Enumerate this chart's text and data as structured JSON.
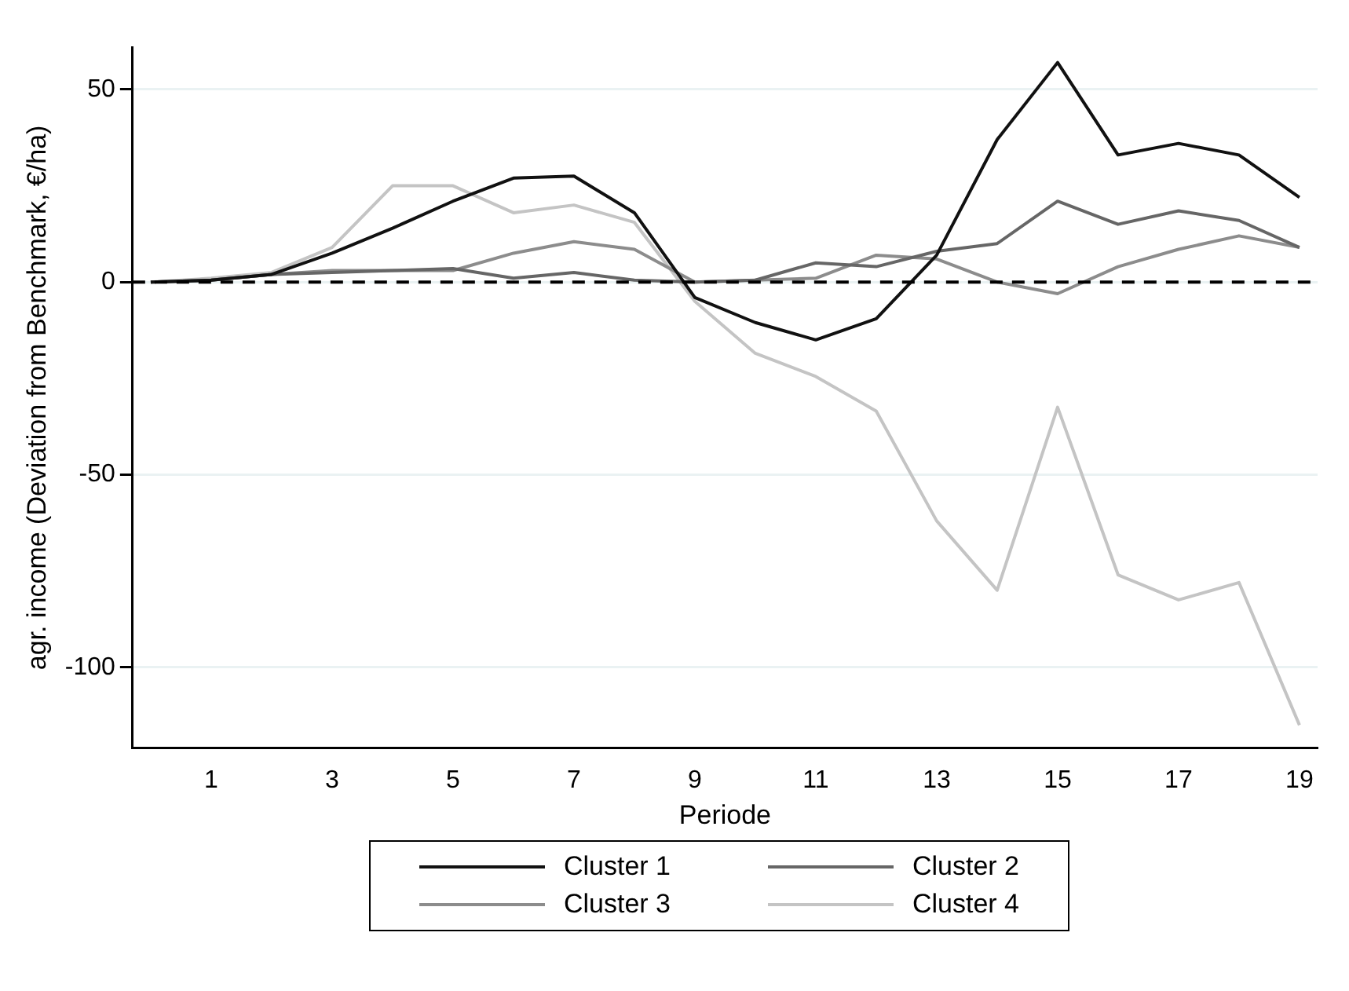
{
  "chart_data": {
    "type": "line",
    "xlabel": "Periode",
    "ylabel": "agr. income (Deviation from Benchmark, €/ha)",
    "x": [
      0,
      1,
      2,
      3,
      4,
      5,
      6,
      7,
      8,
      9,
      10,
      11,
      12,
      13,
      14,
      15,
      16,
      17,
      18,
      19
    ],
    "xlim": [
      -0.3,
      19.3
    ],
    "xticks": [
      1,
      3,
      5,
      7,
      9,
      11,
      13,
      15,
      17,
      19
    ],
    "ylim": [
      -121,
      61
    ],
    "yticks": [
      -100,
      -50,
      0,
      50
    ],
    "grid": "y",
    "legend": "bottom",
    "marker": "none",
    "line_style": "solid",
    "ref_lines": [
      {
        "axis": "y",
        "value": 0,
        "color": "#000000",
        "line_style": "dashed"
      }
    ],
    "series": [
      {
        "name": "Cluster 1",
        "color": "#111111",
        "values": [
          0,
          0.5,
          2,
          7.5,
          14,
          21,
          27,
          27.5,
          18,
          -4,
          -10.5,
          -15,
          -9.5,
          7,
          37,
          57,
          33,
          36,
          33,
          22
        ]
      },
      {
        "name": "Cluster 2",
        "color": "#666666",
        "values": [
          0,
          0.5,
          2,
          2.5,
          3,
          3.5,
          1,
          2.5,
          0.5,
          0,
          0.5,
          5,
          4,
          8,
          10,
          21,
          15,
          18.5,
          16,
          9
        ]
      },
      {
        "name": "Cluster 3",
        "color": "#8c8c8c",
        "values": [
          0,
          0.5,
          2,
          3,
          3,
          3,
          7.5,
          10.5,
          8.5,
          0,
          0.5,
          1,
          7,
          6,
          0,
          -3,
          4,
          8.5,
          12,
          9
        ]
      },
      {
        "name": "Cluster 4",
        "color": "#c4c4c4",
        "values": [
          0,
          1,
          2.5,
          9,
          25,
          25,
          18,
          20,
          15.5,
          -5,
          -18.5,
          -24.5,
          -33.5,
          -62,
          -80,
          -32.5,
          -76,
          -82.5,
          -78,
          -115
        ]
      }
    ]
  }
}
